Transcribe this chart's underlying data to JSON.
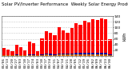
{
  "title": "Solar PV/Inverter Performance  Weekly Solar Energy Production",
  "ylabel": "kWh",
  "ylim": [
    0,
    140
  ],
  "yticks": [
    20,
    40,
    60,
    80,
    100,
    120,
    140
  ],
  "background_color": "#ffffff",
  "plot_bg": "#ffffff",
  "bar_width": 0.8,
  "weeks": [
    "01/06",
    "01/13",
    "01/20",
    "01/27",
    "02/03",
    "02/10",
    "02/17",
    "02/24",
    "03/03",
    "03/10",
    "03/17",
    "03/24",
    "03/31",
    "04/07",
    "04/14",
    "04/21",
    "04/28",
    "05/05",
    "05/12",
    "05/19",
    "05/26",
    "06/02",
    "06/09",
    "06/16",
    "06/23",
    "06/30"
  ],
  "solar_values": [
    28,
    22,
    18,
    38,
    30,
    20,
    50,
    45,
    18,
    62,
    88,
    80,
    72,
    100,
    90,
    82,
    98,
    115,
    108,
    122,
    118,
    128,
    125,
    132,
    130,
    60
  ],
  "bar_color_main": "#ff0000",
  "small_bar_values": [
    4,
    3,
    3,
    5,
    4,
    3,
    6,
    5,
    3,
    7,
    8,
    8,
    7,
    9,
    9,
    8,
    9,
    10,
    10,
    11,
    10,
    11,
    11,
    12,
    11,
    6
  ],
  "small_bar_color": "#000099",
  "mini_bar_values": [
    2,
    2,
    2,
    3,
    2,
    2,
    3,
    3,
    2,
    4,
    5,
    4,
    4,
    5,
    5,
    5,
    5,
    6,
    6,
    6,
    6,
    7,
    6,
    7,
    7,
    4
  ],
  "mini_bar_color": "#cc6600",
  "grid_color": "#bbbbbb",
  "title_fontsize": 4.0,
  "tick_fontsize": 3.2,
  "dashed_line_y": 55
}
